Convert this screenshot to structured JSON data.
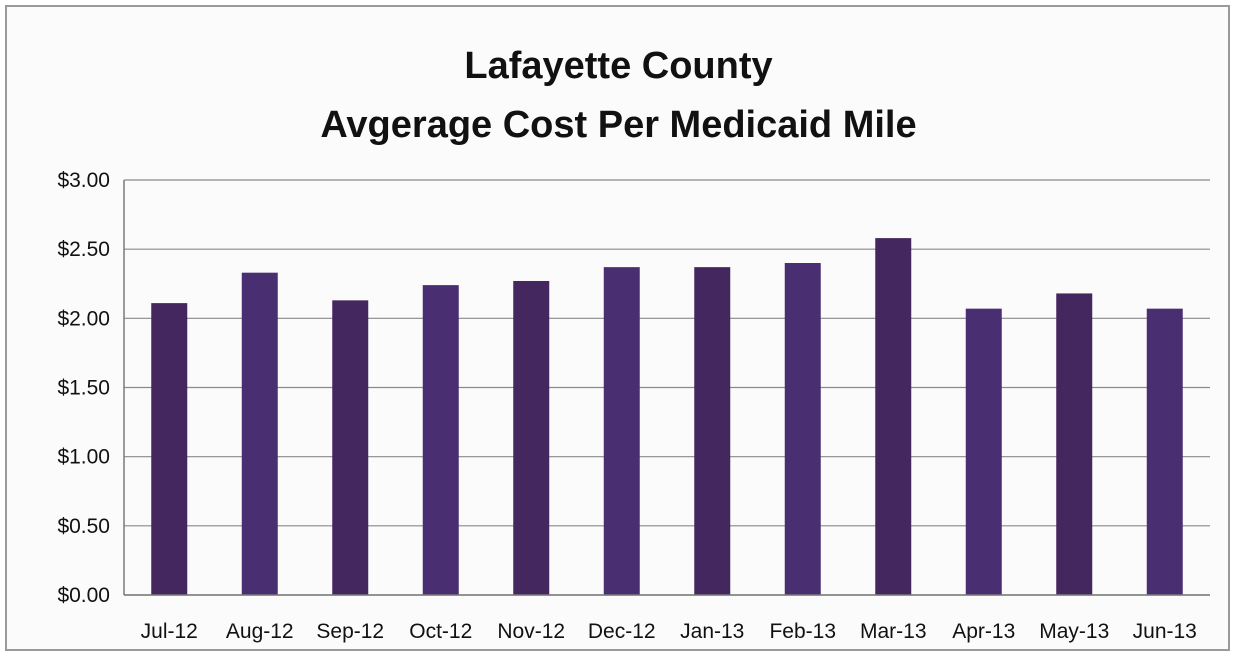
{
  "chart_data": {
    "type": "bar",
    "title": [
      "Lafayette County",
      "Avgerage Cost Per Medicaid Mile"
    ],
    "categories": [
      "Jul-12",
      "Aug-12",
      "Sep-12",
      "Oct-12",
      "Nov-12",
      "Dec-12",
      "Jan-13",
      "Feb-13",
      "Mar-13",
      "Apr-13",
      "May-13",
      "Jun-13"
    ],
    "values": [
      2.11,
      2.33,
      2.13,
      2.24,
      2.27,
      2.37,
      2.37,
      2.4,
      2.58,
      2.07,
      2.18,
      2.07
    ],
    "ylim": [
      0,
      3
    ],
    "yticks": [
      0,
      0.5,
      1,
      1.5,
      2,
      2.5,
      3
    ],
    "ytick_labels": [
      "$0.00",
      "$0.50",
      "$1.00",
      "$1.50",
      "$2.00",
      "$2.50",
      "$3.00"
    ],
    "xlabel": "",
    "ylabel": "",
    "grid": true,
    "legend": "none",
    "bar_color": "#45275f",
    "bar_color_alt": "#4a2e72"
  }
}
